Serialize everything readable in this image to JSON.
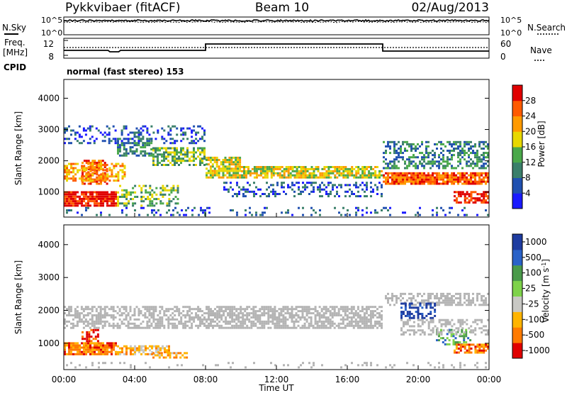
{
  "header": {
    "station": "Pykkvibaer (fitACF)",
    "beam": "Beam 10",
    "date": "02/Aug/2013"
  },
  "param_labels": {
    "nsky": "N.Sky",
    "nsearch": "N.Search",
    "freq_line1": "Freq.",
    "freq_line2": "[MHz]",
    "nave": "Nave",
    "cpid": "CPID",
    "cpid_value": "normal (fast stereo) 153"
  },
  "param_ticks": {
    "noise_left": [
      "10^5",
      "10^0"
    ],
    "noise_right": [
      "10^5",
      "10^0"
    ],
    "freq_left": [
      "12",
      "8"
    ],
    "nave_right": [
      "60",
      "0"
    ]
  },
  "colors": {
    "power_scale": [
      "#1a1aff",
      "#2050b0",
      "#3a7f6a",
      "#4aa84a",
      "#e8d800",
      "#ff9a00",
      "#ff5a00",
      "#e00000"
    ],
    "velocity_scale": [
      "#1e3ca0",
      "#2a62c8",
      "#4a9a4a",
      "#7ed24a",
      "#c8c8c4",
      "#ffb400",
      "#ff7a00",
      "#e00000"
    ],
    "ground_scatter": "#b4b4b4"
  },
  "chart_data": [
    {
      "type": "heatmap",
      "panel": "power",
      "xlabel": "",
      "ylabel": "Slant Range [km]",
      "y_ticks": [
        "1000",
        "2000",
        "3000",
        "4000"
      ],
      "y_range_km": [
        200,
        4600
      ],
      "x_range_hours": [
        0,
        24
      ],
      "colorbar": {
        "label": "Power [dB]",
        "ticks": [
          "4",
          "8",
          "12",
          "16",
          "20",
          "24",
          "28"
        ],
        "range": [
          0,
          30
        ]
      }
    },
    {
      "type": "heatmap",
      "panel": "velocity",
      "xlabel": "Time UT",
      "ylabel": "Slant Range [km]",
      "y_ticks": [
        "1000",
        "2000",
        "3000",
        "4000"
      ],
      "y_range_km": [
        200,
        4600
      ],
      "x_range_hours": [
        0,
        24
      ],
      "x_ticks": [
        "00:00",
        "04:00",
        "08:00",
        "12:00",
        "16:00",
        "20:00",
        "00:00"
      ],
      "colorbar": {
        "label": "Velocity [m s",
        "label_superscript": "-1",
        "label_close": "]",
        "ticks": [
          "1000",
          "500",
          "100",
          "25",
          "-25",
          "-100",
          "-500",
          "-1000"
        ]
      }
    }
  ]
}
